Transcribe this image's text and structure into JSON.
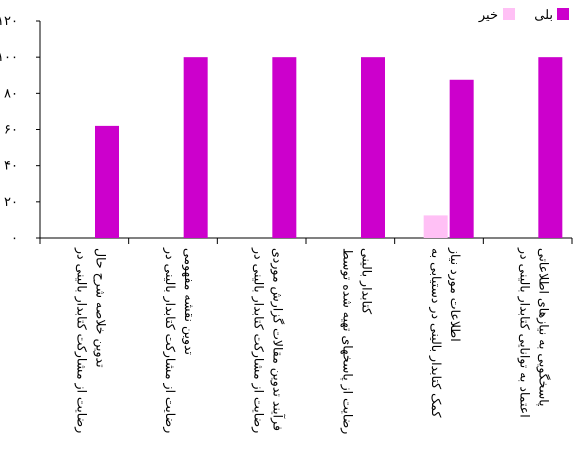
{
  "chart_data": {
    "type": "bar",
    "categories": [
      "رضایت از مشارکت کتابدار بالینی در تدوین خلاصه شرح حال",
      "رضایت از مشارکت کتابدار بالینی در تدوین نقشه مفهومی",
      "رضایت از مشارکت کتابدار بالینی در فرآیند تدوین مقالات گزارش موردی",
      "رضایت از پاسخهای تهیه شده توسط کتابدار بالینی",
      "کمک کتابدار بالینی در دستیابی به اطلاعات مورد نیاز",
      "اعتماد به توانایی کتابدار بالینی در پاسخگویی به نیازهای اطلاعاتی"
    ],
    "category_lines": [
      [
        "رضایت از مشارکت کتابدار بالینی در",
        "تدوین خلاصه شرح حال"
      ],
      [
        "رضایت از مشارکت کتابدار بالینی در",
        "تدوین نقشه مفهومی"
      ],
      [
        "رضایت از مشارکت کتابدار بالینی در",
        "فرآیند تدوین مقالات گزارش موردی"
      ],
      [
        "رضایت از پاسخهای تهیه شده توسط",
        "کتابدار بالینی"
      ],
      [
        "کمک کتابدار بالینی در دستیابی به",
        "اطلاعات مورد نیاز"
      ],
      [
        "اعتماد به توانایی کتابدار بالینی در",
        "پاسخگویی به نیازهای اطلاعاتی"
      ]
    ],
    "series": [
      {
        "name": "بلی",
        "color": "#cc00cc",
        "values": [
          62,
          100,
          100,
          100,
          87.5,
          100
        ]
      },
      {
        "name": "خیر",
        "color": "#ffc0f5",
        "values": [
          0,
          0,
          0,
          0,
          12.5,
          0
        ]
      }
    ],
    "ylim": [
      0,
      120
    ],
    "yticks": [
      0,
      20,
      40,
      60,
      80,
      100,
      120
    ],
    "ytick_labels": [
      "۰",
      "۲۰",
      "۴۰",
      "۶۰",
      "۸۰",
      "۱۰۰",
      "۱۲۰"
    ],
    "grid": false,
    "legend_position": "top-right",
    "title": "",
    "xlabel": "",
    "ylabel": ""
  }
}
